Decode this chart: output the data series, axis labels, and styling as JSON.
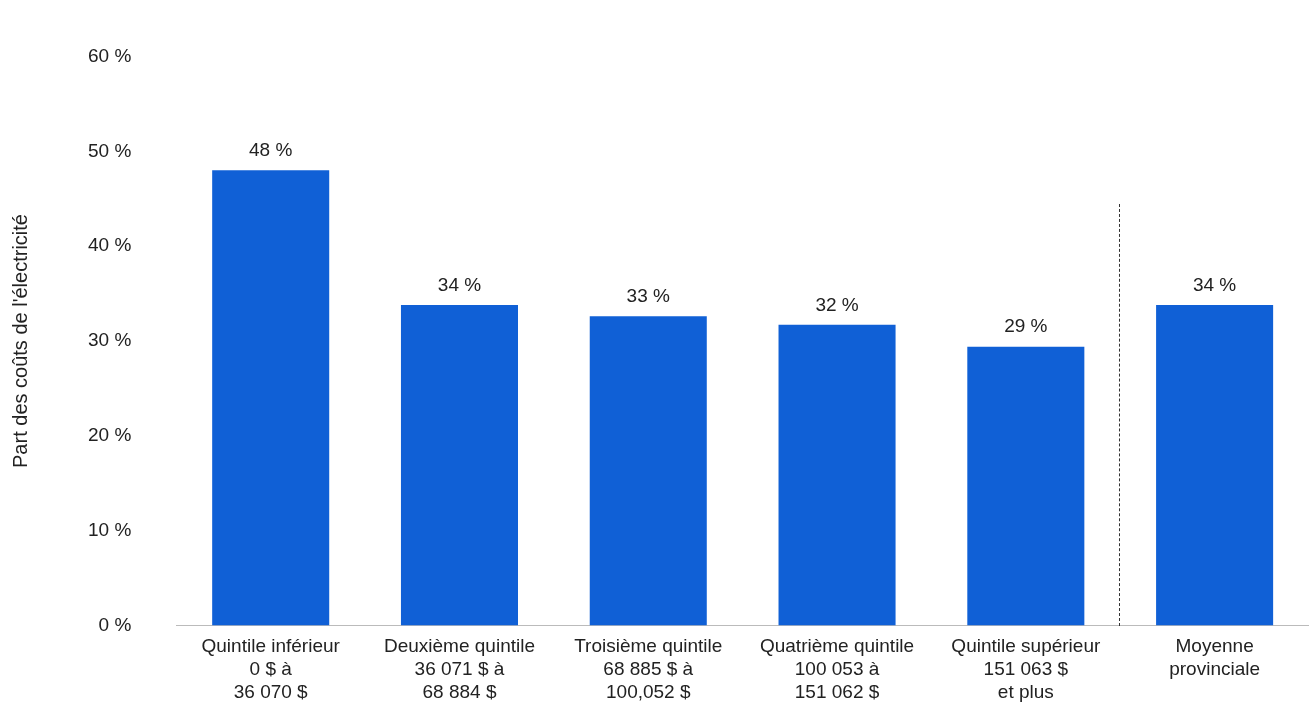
{
  "chart_data": {
    "type": "bar",
    "ylabel": "Part des coûts de l'électricité",
    "categories": [
      "Quintile inférieur\n0 $ à\n36 070 $",
      "Deuxième quintile\n36 071 $ à\n68 884 $",
      "Troisième quintile\n68 885 $ à\n100,052 $",
      "Quatrième quintile\n100 053 à\n151 062 $",
      "Quintile supérieur\n151 063 $\net plus",
      "Moyenne\nprovinciale"
    ],
    "values": [
      48.0,
      33.8,
      32.6,
      31.7,
      29.4,
      33.8
    ],
    "value_labels": [
      "48 %",
      "34 %",
      "33 %",
      "32 %",
      "29 %",
      "34 %"
    ],
    "color": "#1060d6",
    "ylim": [
      0,
      60
    ],
    "yticks": [
      {
        "value": 0,
        "label": "0 %"
      },
      {
        "value": 10,
        "label": "10 %"
      },
      {
        "value": 20,
        "label": "20 %"
      },
      {
        "value": 30,
        "label": "30 %"
      },
      {
        "value": 40,
        "label": "40 %"
      },
      {
        "value": 50,
        "label": "50 %"
      },
      {
        "value": 60,
        "label": "60 %"
      }
    ],
    "grid": false,
    "legend": false
  }
}
